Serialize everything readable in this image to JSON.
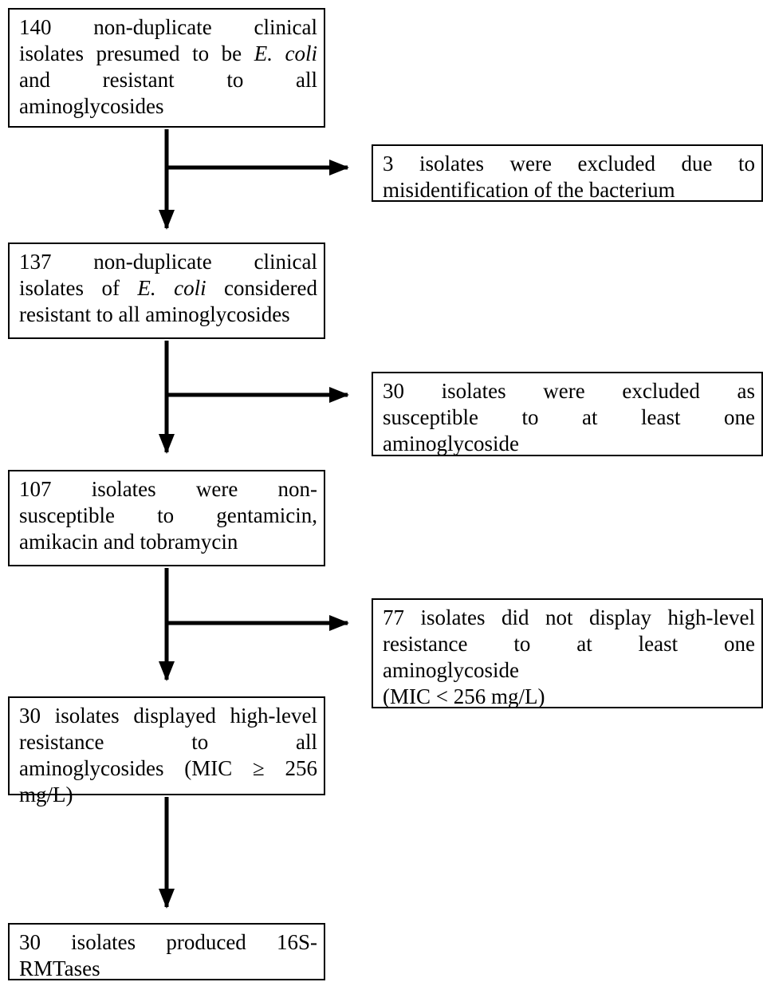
{
  "boxes": {
    "step1": {
      "lines": [
        [
          "140 non-duplicate clinical"
        ],
        [
          "isolates presumed to be ",
          "E. coli",
          ""
        ],
        [
          "and resistant to all"
        ],
        [
          "aminoglycosides"
        ]
      ]
    },
    "exclusion1": {
      "lines": [
        [
          "3 isolates were excluded due to"
        ],
        [
          "misidentification of the bacterium"
        ]
      ]
    },
    "step2": {
      "lines": [
        [
          "137 non-duplicate clinical"
        ],
        [
          "isolates of ",
          "E. coli",
          " considered"
        ],
        [
          "resistant to all aminoglycosides"
        ]
      ]
    },
    "exclusion2": {
      "lines": [
        [
          "30 isolates were excluded as"
        ],
        [
          "susceptible to at least one"
        ],
        [
          "aminoglycoside"
        ]
      ]
    },
    "step3": {
      "lines": [
        [
          "107 isolates were non-"
        ],
        [
          "susceptible to gentamicin,"
        ],
        [
          "amikacin and tobramycin"
        ]
      ]
    },
    "exclusion3": {
      "lines": [
        [
          "77 isolates did not display high-level"
        ],
        [
          "resistance to at least one"
        ],
        [
          "aminoglycoside"
        ],
        [
          "(MIC < 256 mg/L)"
        ]
      ]
    },
    "step4": {
      "lines": [
        [
          "30 isolates displayed high-level"
        ],
        [
          "resistance to all"
        ],
        [
          "aminoglycosides (MIC ≥ 256"
        ],
        [
          "mg/L)"
        ]
      ]
    },
    "step5": {
      "lines": [
        [
          "30 isolates produced 16S-"
        ],
        [
          "RMTases"
        ]
      ]
    }
  },
  "colors": {
    "stroke": "#000000",
    "background": "#ffffff"
  }
}
